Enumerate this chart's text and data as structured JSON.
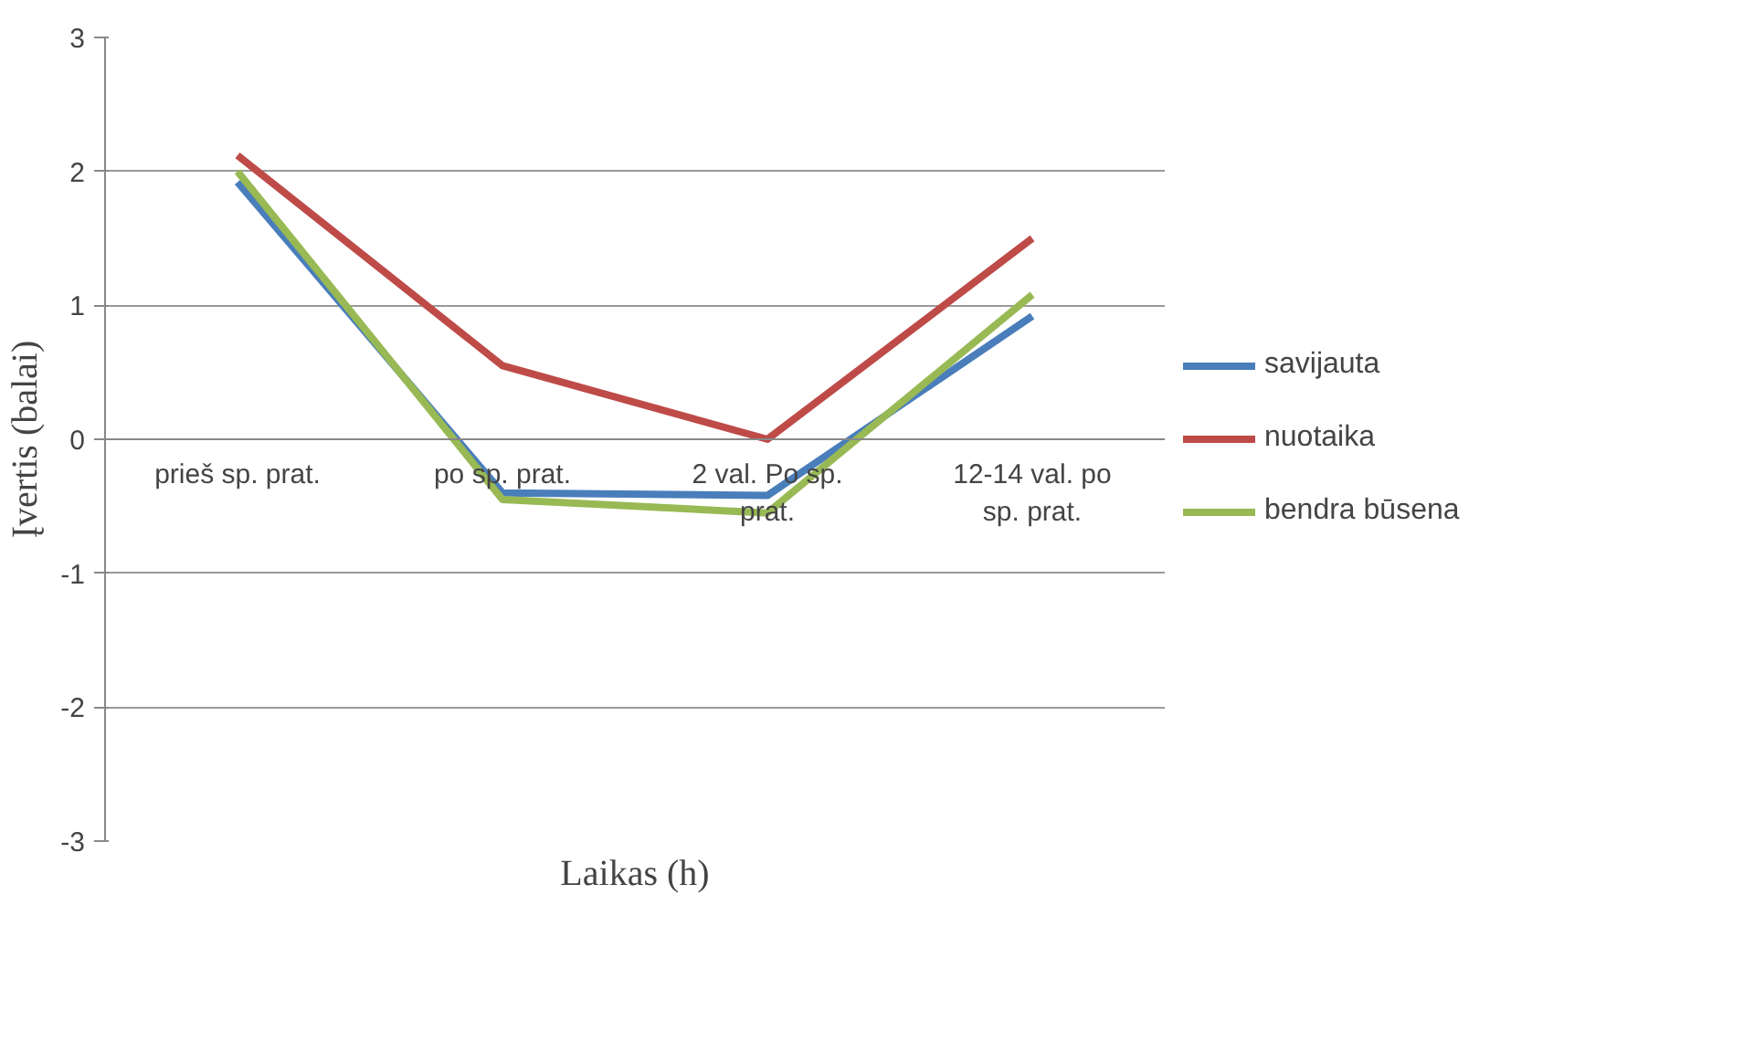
{
  "chart_data": {
    "type": "line",
    "xlabel": "Laikas (h)",
    "ylabel": "Įvertis (balai)",
    "categories": [
      "prieš sp. prat.",
      "po sp. prat.",
      "2 val. Po sp. prat.",
      "12-14 val. po sp. prat."
    ],
    "series": [
      {
        "name": "savijauta",
        "color": "#4a7ebb",
        "values": [
          1.92,
          -0.4,
          -0.42,
          0.92
        ]
      },
      {
        "name": "nuotaika",
        "color": "#be4b48",
        "values": [
          2.12,
          0.55,
          0.0,
          1.5
        ]
      },
      {
        "name": "bendra būsena",
        "color": "#98b954",
        "values": [
          2.0,
          -0.45,
          -0.55,
          1.08
        ]
      }
    ],
    "ylim": [
      -3,
      3
    ],
    "yticks": [
      -3,
      -2,
      -1,
      0,
      1,
      2,
      3
    ],
    "grid": "y",
    "legend": "right",
    "marker": "none",
    "line_style": "solid"
  }
}
